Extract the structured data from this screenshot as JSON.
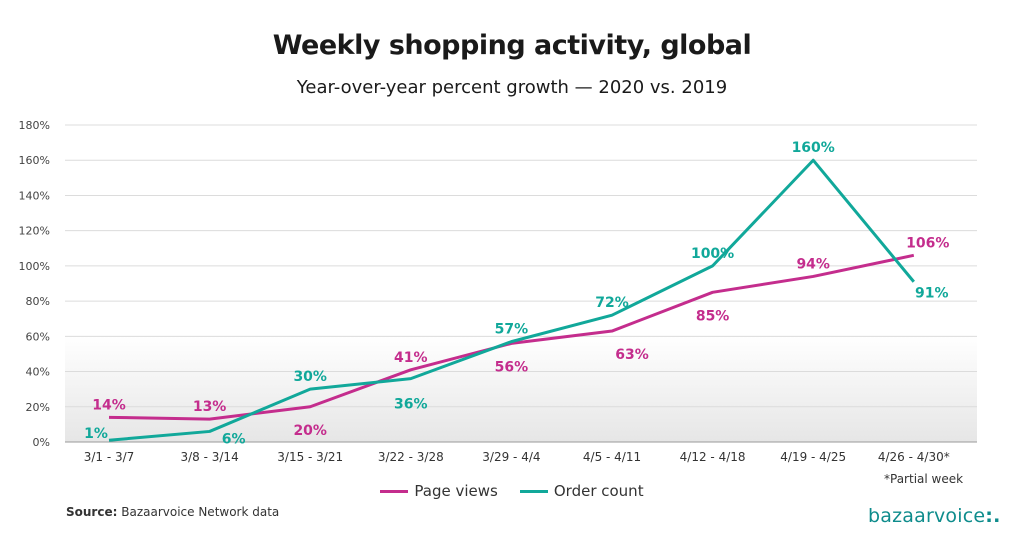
{
  "chart_data": {
    "type": "line",
    "title": "Weekly shopping activity, global",
    "subtitle": "Year-over-year percent growth — 2020 vs. 2019",
    "categories": [
      "3/1 - 3/7",
      "3/8 - 3/14",
      "3/15 - 3/21",
      "3/22 - 3/28",
      "3/29 - 4/4",
      "4/5 - 4/11",
      "4/12 - 4/18",
      "4/19 - 4/25",
      "4/26 - 4/30*"
    ],
    "series": [
      {
        "name": "Page views",
        "color": "#c42d8d",
        "values": [
          14,
          13,
          20,
          41,
          56,
          63,
          85,
          94,
          106
        ],
        "labels": [
          "14%",
          "13%",
          "20%",
          "41%",
          "56%",
          "63%",
          "85%",
          "94%",
          "106%"
        ]
      },
      {
        "name": "Order count",
        "color": "#11a89a",
        "values": [
          1,
          6,
          30,
          36,
          57,
          72,
          100,
          160,
          91
        ],
        "labels": [
          "1%",
          "6%",
          "30%",
          "36%",
          "57%",
          "72%",
          "100%",
          "160%",
          "91%"
        ]
      }
    ],
    "ylim": [
      0,
      180
    ],
    "yticks": [
      0,
      20,
      40,
      60,
      80,
      100,
      120,
      140,
      160,
      180
    ],
    "ytick_labels": [
      "0%",
      "20%",
      "40%",
      "60%",
      "80%",
      "100%",
      "120%",
      "140%",
      "160%",
      "180%"
    ],
    "grid": true,
    "legend_position": "bottom-center"
  },
  "footnote": "*Partial week",
  "source_label": "Source:",
  "source_text": "Bazaarvoice Network data",
  "brand": "bazaarvoice",
  "brand_mark": ":."
}
